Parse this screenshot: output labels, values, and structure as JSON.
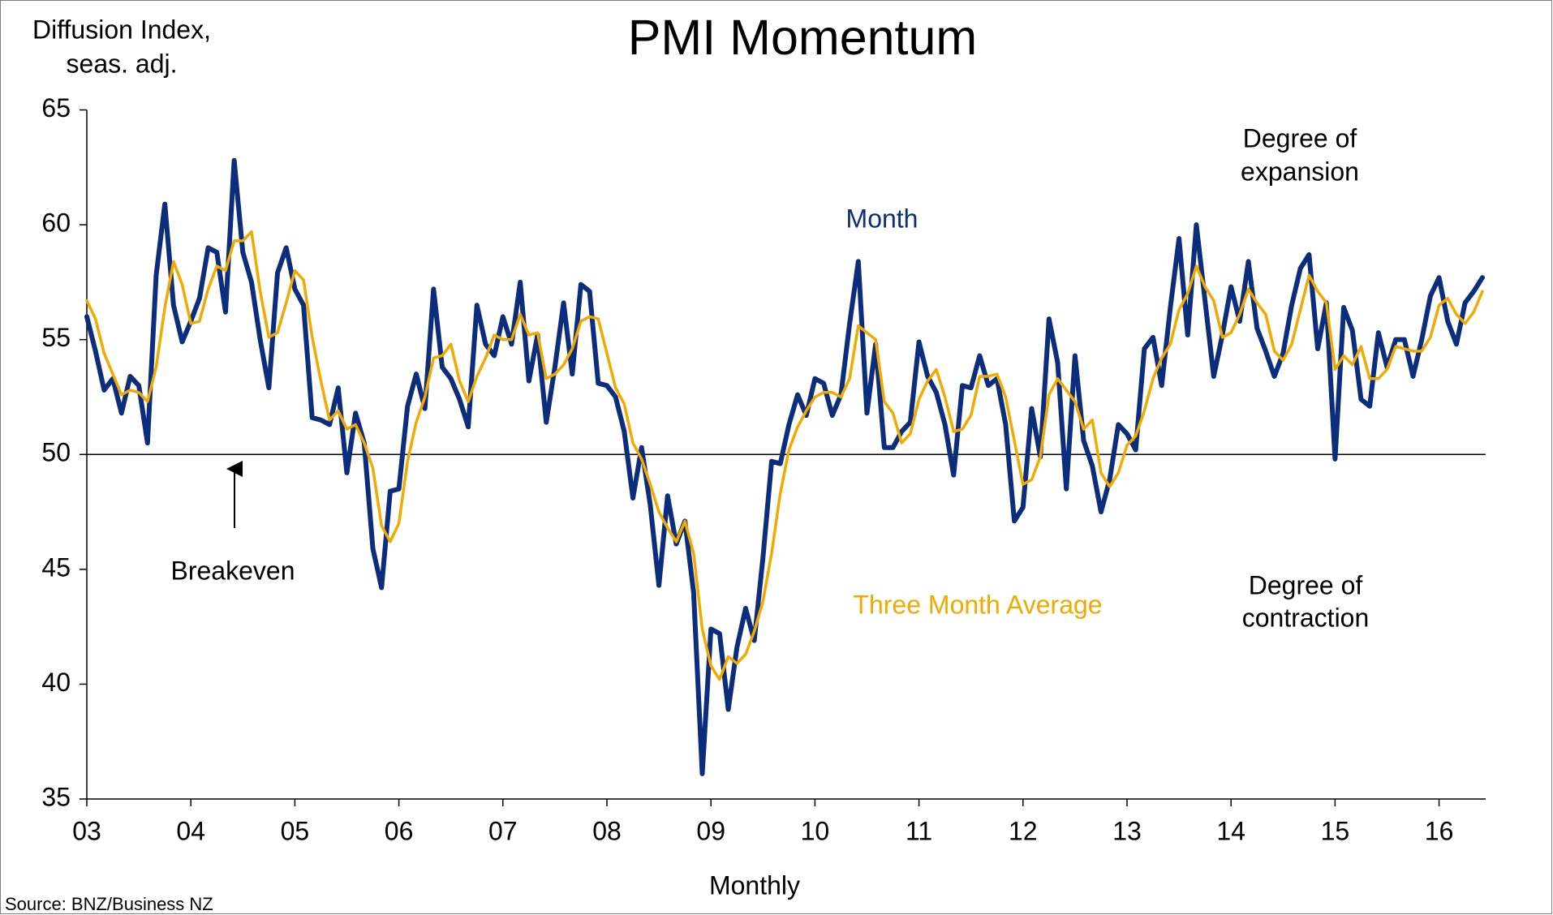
{
  "chart_data": {
    "type": "line",
    "title": "PMI Momentum",
    "y_label": [
      "Diffusion Index,",
      "seas. adj."
    ],
    "x_label": "Monthly",
    "source": "Source: BNZ/Business NZ",
    "annotations": {
      "breakeven": "Breakeven",
      "expansion": [
        "Degree of",
        "expansion"
      ],
      "contraction": [
        "Degree of",
        "contraction"
      ]
    },
    "reference_line": 50,
    "categories": [
      "03",
      null,
      null,
      null,
      null,
      null,
      null,
      null,
      null,
      null,
      null,
      null,
      "04",
      null,
      null,
      null,
      null,
      null,
      null,
      null,
      null,
      null,
      null,
      null,
      "05",
      null,
      null,
      null,
      null,
      null,
      null,
      null,
      null,
      null,
      null,
      null,
      "06",
      null,
      null,
      null,
      null,
      null,
      null,
      null,
      null,
      null,
      null,
      null,
      "07",
      null,
      null,
      null,
      null,
      null,
      null,
      null,
      null,
      null,
      null,
      null,
      "08",
      null,
      null,
      null,
      null,
      null,
      null,
      null,
      null,
      null,
      null,
      null,
      "09",
      null,
      null,
      null,
      null,
      null,
      null,
      null,
      null,
      null,
      null,
      null,
      "10",
      null,
      null,
      null,
      null,
      null,
      null,
      null,
      null,
      null,
      null,
      null,
      "11",
      null,
      null,
      null,
      null,
      null,
      null,
      null,
      null,
      null,
      null,
      null,
      "12",
      null,
      null,
      null,
      null,
      null,
      null,
      null,
      null,
      null,
      null,
      null,
      "13",
      null,
      null,
      null,
      null,
      null,
      null,
      null,
      null,
      null,
      null,
      null,
      "14",
      null,
      null,
      null,
      null,
      null,
      null,
      null,
      null,
      null,
      null,
      null,
      "15",
      null,
      null,
      null,
      null,
      null,
      null,
      null,
      null,
      null,
      null,
      null,
      "16",
      null,
      null,
      null,
      null,
      null
    ],
    "series": [
      {
        "name": "Month",
        "color": "#0b2d7c",
        "values": [
          56.0,
          54.5,
          52.8,
          53.3,
          51.8,
          53.4,
          53.0,
          50.5,
          57.8,
          60.9,
          56.5,
          54.9,
          55.8,
          56.8,
          59.0,
          58.8,
          56.2,
          62.8,
          58.8,
          57.5,
          55.0,
          52.9,
          57.9,
          59.0,
          57.2,
          56.5,
          51.6,
          51.5,
          51.3,
          52.9,
          49.2,
          51.8,
          50.5,
          45.9,
          44.2,
          48.4,
          48.5,
          52.1,
          53.5,
          52.0,
          57.2,
          53.8,
          53.3,
          52.4,
          51.2,
          56.5,
          54.8,
          54.3,
          56.0,
          54.8,
          57.5,
          53.2,
          55.2,
          51.4,
          53.8,
          56.6,
          53.5,
          57.4,
          57.1,
          53.1,
          53.0,
          52.5,
          51.0,
          48.1,
          50.3,
          47.8,
          44.3,
          48.2,
          46.1,
          47.1,
          44.0,
          36.1,
          42.4,
          42.2,
          38.9,
          41.6,
          43.3,
          41.9,
          45.5,
          49.7,
          49.6,
          51.3,
          52.6,
          51.7,
          53.3,
          53.1,
          51.7,
          52.6,
          55.7,
          58.4,
          51.8,
          54.8,
          50.3,
          50.3,
          51.0,
          51.4,
          54.9,
          53.4,
          52.7,
          51.3,
          49.1,
          53.0,
          52.9,
          54.3,
          53.0,
          53.3,
          51.3,
          47.1,
          47.7,
          52.0,
          49.9,
          55.9,
          54.0,
          48.5,
          54.3,
          50.6,
          49.5,
          47.5,
          48.9,
          51.3,
          50.9,
          50.2,
          54.6,
          55.1,
          53.0,
          56.4,
          59.4,
          55.2,
          60.0,
          56.7,
          53.4,
          55.2,
          57.3,
          55.8,
          58.4,
          55.5,
          54.5,
          53.4,
          54.4,
          56.5,
          58.1,
          58.7,
          54.6,
          56.6,
          49.8,
          56.4,
          55.4,
          52.4,
          52.1,
          55.3,
          53.8,
          55.0,
          55.0,
          53.4,
          55.0,
          56.9,
          57.7,
          55.8,
          54.8,
          56.6,
          57.1,
          57.7
        ]
      },
      {
        "name": "Three Month Average",
        "color": "#f2a900",
        "values": [
          56.7,
          55.9,
          54.4,
          53.5,
          52.6,
          52.8,
          52.7,
          52.3,
          53.8,
          56.4,
          58.4,
          57.4,
          55.7,
          55.8,
          57.2,
          58.2,
          58.0,
          59.3,
          59.3,
          59.7,
          57.1,
          55.1,
          55.3,
          56.6,
          58.0,
          57.6,
          55.1,
          53.2,
          51.5,
          51.9,
          51.1,
          51.3,
          50.5,
          49.4,
          46.9,
          46.2,
          47.0,
          49.7,
          51.4,
          52.5,
          54.2,
          54.3,
          54.8,
          53.2,
          52.3,
          53.4,
          54.2,
          55.2,
          55.0,
          55.0,
          56.1,
          55.2,
          55.3,
          53.3,
          53.5,
          53.9,
          54.6,
          55.8,
          56.0,
          55.9,
          54.4,
          52.9,
          52.2,
          50.5,
          49.8,
          48.7,
          47.5,
          46.8,
          46.2,
          47.1,
          45.7,
          42.4,
          40.8,
          40.2,
          41.2,
          40.9,
          41.3,
          42.3,
          43.6,
          45.7,
          48.3,
          50.2,
          51.2,
          51.9,
          52.5,
          52.7,
          52.7,
          52.5,
          53.3,
          55.6,
          55.3,
          55.0,
          52.3,
          51.8,
          50.5,
          50.9,
          52.4,
          53.2,
          53.7,
          52.5,
          51.0,
          51.1,
          51.7,
          53.4,
          53.4,
          53.5,
          52.5,
          50.6,
          48.7,
          48.9,
          49.9,
          52.6,
          53.3,
          52.8,
          52.3,
          51.1,
          51.5,
          49.2,
          48.6,
          49.2,
          50.4,
          50.8,
          51.9,
          53.3,
          54.2,
          54.8,
          56.3,
          57.0,
          58.2,
          57.3,
          56.7,
          55.1,
          55.3,
          56.1,
          57.2,
          56.6,
          56.1,
          54.5,
          54.1,
          54.8,
          56.3,
          57.8,
          57.1,
          56.6,
          53.7,
          54.3,
          53.9,
          54.7,
          53.3,
          53.3,
          53.7,
          54.7,
          54.6,
          54.5,
          54.5,
          55.1,
          56.5,
          56.8,
          56.1,
          55.7,
          56.2,
          57.1
        ]
      }
    ],
    "ylim": [
      35,
      65
    ],
    "yticks": [
      35,
      40,
      45,
      50,
      55,
      60,
      65
    ]
  }
}
